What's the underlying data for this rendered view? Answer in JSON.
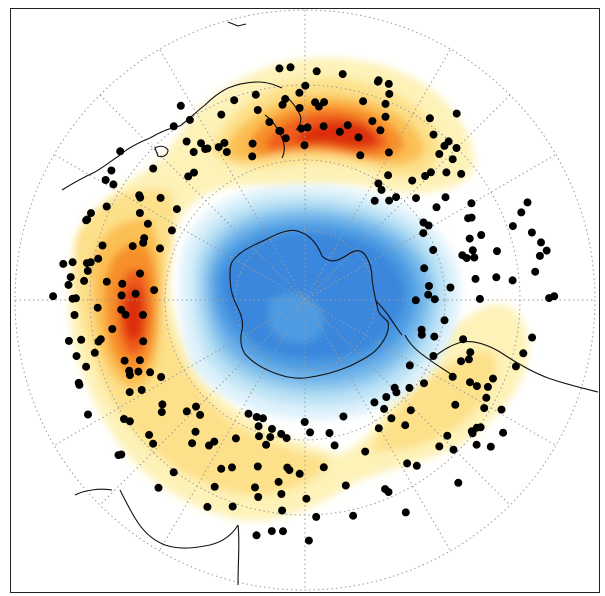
{
  "map": {
    "projection": "polar-stereographic-south",
    "colors": {
      "frame": "#222222",
      "coast": "#111111",
      "graticule": "#9a9a9a",
      "stipple": "#000000",
      "pos1": "#fdf2b8",
      "pos2": "#fde08a",
      "pos3": "#fbbf52",
      "pos4": "#f7902a",
      "pos5": "#ee5d1a",
      "pos6": "#dc2e10",
      "neg1": "#dff2fb",
      "neg2": "#bde3f5",
      "neg3": "#97cdef",
      "neg4": "#6fb4ea",
      "neg5": "#4d9be2",
      "neg6": "#3a87dd"
    }
  }
}
